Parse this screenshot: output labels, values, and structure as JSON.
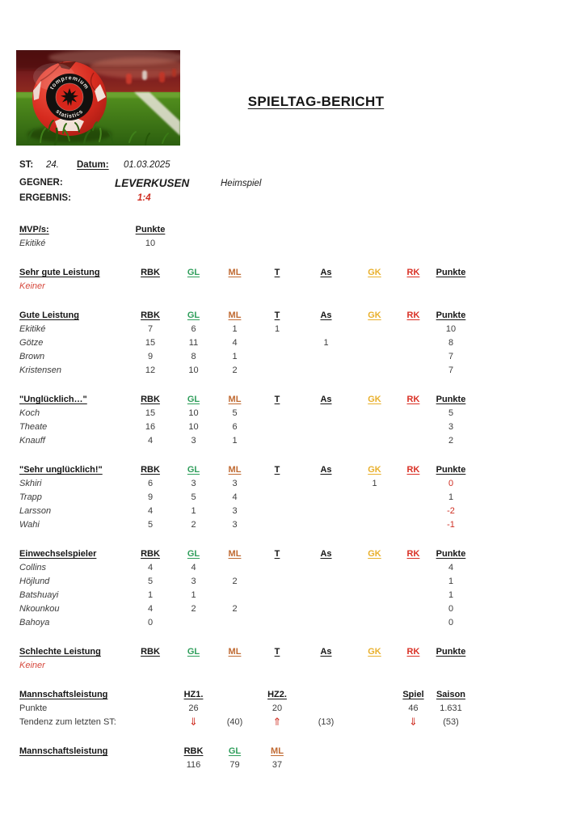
{
  "title": "SPIELTAG-BERICHT",
  "meta": {
    "st_label": "ST:",
    "st_value": "24.",
    "datum_label": "Datum:",
    "datum_value": "01.03.2025",
    "gegner_label": "GEGNER:",
    "gegner_value": "LEVERKUSEN",
    "venue": "Heimspiel",
    "ergebnis_label": "ERGEBNIS:",
    "ergebnis_value": "1:4"
  },
  "photo": {
    "badge_top": "tompremium",
    "badge_bottom": "statistics"
  },
  "colors": {
    "accent_red": "#cf2e22",
    "soft_red": "#d6493d",
    "green": "#2f9e5b",
    "orange": "#c06a32",
    "gold": "#e9b02c"
  },
  "columns": [
    {
      "key": "rbk",
      "label": "RBK",
      "color": "#161616"
    },
    {
      "key": "gl",
      "label": "GL",
      "color": "#2f9e5b"
    },
    {
      "key": "ml",
      "label": "ML",
      "color": "#c06a32"
    },
    {
      "key": "t",
      "label": "T",
      "color": "#161616"
    },
    {
      "key": "as",
      "label": "As",
      "color": "#161616"
    },
    {
      "key": "gk",
      "label": "GK",
      "color": "#e9b02c"
    },
    {
      "key": "rk",
      "label": "RK",
      "color": "#d93025"
    },
    {
      "key": "punkte",
      "label": "Punkte",
      "color": "#161616"
    }
  ],
  "mvp": {
    "label": "MVP/s:",
    "points_label": "Punkte",
    "players": [
      {
        "name": "Ekitiké",
        "points": "10"
      }
    ]
  },
  "sections": [
    {
      "title": "Sehr gute Leistung",
      "empty": "Keiner",
      "rows": []
    },
    {
      "title": "Gute Leistung",
      "rows": [
        {
          "name": "Ekitiké",
          "values": [
            "7",
            "6",
            "1",
            "1",
            "",
            "",
            "",
            "10"
          ]
        },
        {
          "name": "Götze",
          "values": [
            "15",
            "11",
            "4",
            "",
            "1",
            "",
            "",
            "8"
          ]
        },
        {
          "name": "Brown",
          "values": [
            "9",
            "8",
            "1",
            "",
            "",
            "",
            "",
            "7"
          ]
        },
        {
          "name": "Kristensen",
          "values": [
            "12",
            "10",
            "2",
            "",
            "",
            "",
            "",
            "7"
          ]
        }
      ]
    },
    {
      "title": "\"Unglücklich…\"",
      "rows": [
        {
          "name": "Koch",
          "values": [
            "15",
            "10",
            "5",
            "",
            "",
            "",
            "",
            "5"
          ]
        },
        {
          "name": "Theate",
          "values": [
            "16",
            "10",
            "6",
            "",
            "",
            "",
            "",
            "3"
          ]
        },
        {
          "name": "Knauff",
          "values": [
            "4",
            "3",
            "1",
            "",
            "",
            "",
            "",
            "2"
          ]
        }
      ]
    },
    {
      "title": "\"Sehr unglücklich!\"",
      "rows": [
        {
          "name": "Skhiri",
          "values": [
            "6",
            "3",
            "3",
            "",
            "",
            "1",
            "",
            "0"
          ],
          "pr": true
        },
        {
          "name": "Trapp",
          "values": [
            "9",
            "5",
            "4",
            "",
            "",
            "",
            "",
            "1"
          ]
        },
        {
          "name": "Larsson",
          "values": [
            "4",
            "1",
            "3",
            "",
            "",
            "",
            "",
            "-2"
          ],
          "pr": true
        },
        {
          "name": "Wahi",
          "values": [
            "5",
            "2",
            "3",
            "",
            "",
            "",
            "",
            "-1"
          ],
          "pr": true
        }
      ]
    },
    {
      "title": "Einwechselspieler",
      "rows": [
        {
          "name": "Collins",
          "values": [
            "4",
            "4",
            "",
            "",
            "",
            "",
            "",
            "4"
          ]
        },
        {
          "name": "Höjlund",
          "values": [
            "5",
            "3",
            "2",
            "",
            "",
            "",
            "",
            "1"
          ]
        },
        {
          "name": "Batshuayi",
          "values": [
            "1",
            "1",
            "",
            "",
            "",
            "",
            "",
            "1"
          ]
        },
        {
          "name": "Nkounkou",
          "values": [
            "4",
            "2",
            "2",
            "",
            "",
            "",
            "",
            "0"
          ]
        },
        {
          "name": "Bahoya",
          "values": [
            "0",
            "",
            "",
            "",
            "",
            "",
            "",
            "0"
          ]
        }
      ]
    },
    {
      "title": "Schlechte Leistung",
      "empty": "Keiner",
      "rows": []
    }
  ],
  "extra_tables": [
    {
      "name": "team-performance",
      "rows": [
        {
          "cells": [
            "Mannschaftsleistung",
            "",
            "HZ1.",
            "",
            "HZ2.",
            "",
            "",
            "Spiel",
            "Saison"
          ],
          "cls": [
            "sec-title",
            "",
            "colhead",
            "",
            "colhead",
            "",
            "",
            "colhead",
            "colhead"
          ]
        },
        {
          "cells": [
            "Punkte",
            "",
            "26",
            "",
            "20",
            "",
            "",
            "46",
            "1.631"
          ],
          "cls": [
            "plain",
            "",
            "",
            "",
            "",
            "",
            "",
            "",
            ""
          ]
        },
        {
          "cells": [
            "Tendenz zum letzten ST:",
            "",
            "⇓",
            "(40)",
            "⇑",
            "(13)",
            "",
            "⇓",
            "(53)"
          ],
          "cls": [
            "plain",
            "",
            "arrow",
            "",
            "arrow",
            "",
            "",
            "arrow",
            ""
          ]
        }
      ]
    },
    {
      "name": "team-totals",
      "rows": [
        {
          "cells": [
            "Mannschaftsleistung",
            "",
            "RBK",
            "GL",
            "ML",
            "",
            "",
            "",
            ""
          ],
          "cls": [
            "sec-title",
            "",
            "colhead",
            "colhead",
            "colhead",
            "",
            "",
            "",
            ""
          ],
          "colors": [
            "",
            "",
            "#161616",
            "#2f9e5b",
            "#c06a32",
            "",
            "",
            "",
            ""
          ]
        },
        {
          "cells": [
            "",
            "",
            "116",
            "79",
            "37",
            "",
            "",
            "",
            ""
          ],
          "cls": [
            "",
            "",
            "",
            "",
            "",
            "",
            "",
            "",
            ""
          ]
        }
      ]
    }
  ]
}
